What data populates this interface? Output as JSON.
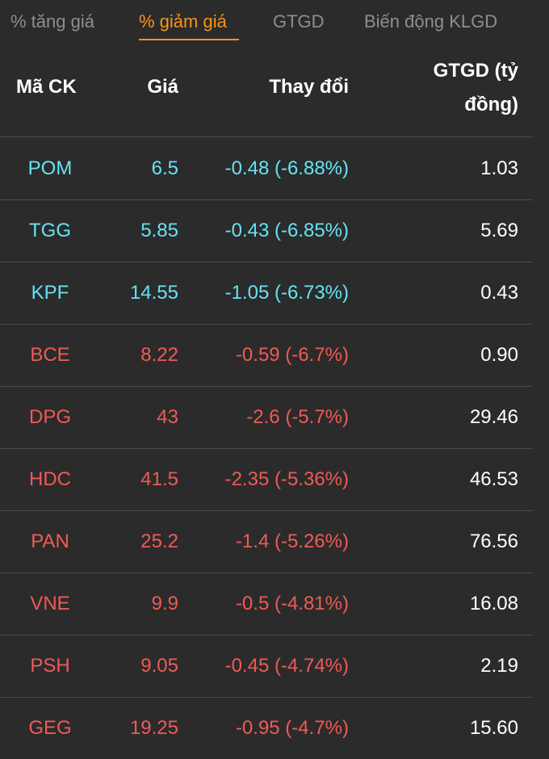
{
  "tabs": [
    {
      "label": "% tăng giá",
      "active": false
    },
    {
      "label": "% giảm giá",
      "active": true
    },
    {
      "label": "GTGD",
      "active": false
    },
    {
      "label": "Biến động KLGD",
      "active": false
    }
  ],
  "colors": {
    "accent": "#f7941d",
    "floor": "#66e3f2",
    "decline": "#f05a55",
    "background": "#2b2b2b"
  },
  "table": {
    "headers": {
      "code": "Mã CK",
      "price": "Giá",
      "change": "Thay đổi",
      "value_line1": "GTGD (tỷ",
      "value_line2": "đồng)"
    },
    "rows": [
      {
        "code": "POM",
        "price": "6.5",
        "change": "-0.48 (-6.88%)",
        "value": "1.03",
        "color": "cyan"
      },
      {
        "code": "TGG",
        "price": "5.85",
        "change": "-0.43 (-6.85%)",
        "value": "5.69",
        "color": "cyan"
      },
      {
        "code": "KPF",
        "price": "14.55",
        "change": "-1.05 (-6.73%)",
        "value": "0.43",
        "color": "cyan"
      },
      {
        "code": "BCE",
        "price": "8.22",
        "change": "-0.59 (-6.7%)",
        "value": "0.90",
        "color": "red"
      },
      {
        "code": "DPG",
        "price": "43",
        "change": "-2.6 (-5.7%)",
        "value": "29.46",
        "color": "red"
      },
      {
        "code": "HDC",
        "price": "41.5",
        "change": "-2.35 (-5.36%)",
        "value": "46.53",
        "color": "red"
      },
      {
        "code": "PAN",
        "price": "25.2",
        "change": "-1.4 (-5.26%)",
        "value": "76.56",
        "color": "red"
      },
      {
        "code": "VNE",
        "price": "9.9",
        "change": "-0.5 (-4.81%)",
        "value": "16.08",
        "color": "red"
      },
      {
        "code": "PSH",
        "price": "9.05",
        "change": "-0.45 (-4.74%)",
        "value": "2.19",
        "color": "red"
      },
      {
        "code": "GEG",
        "price": "19.25",
        "change": "-0.95 (-4.7%)",
        "value": "15.60",
        "color": "red"
      }
    ]
  }
}
